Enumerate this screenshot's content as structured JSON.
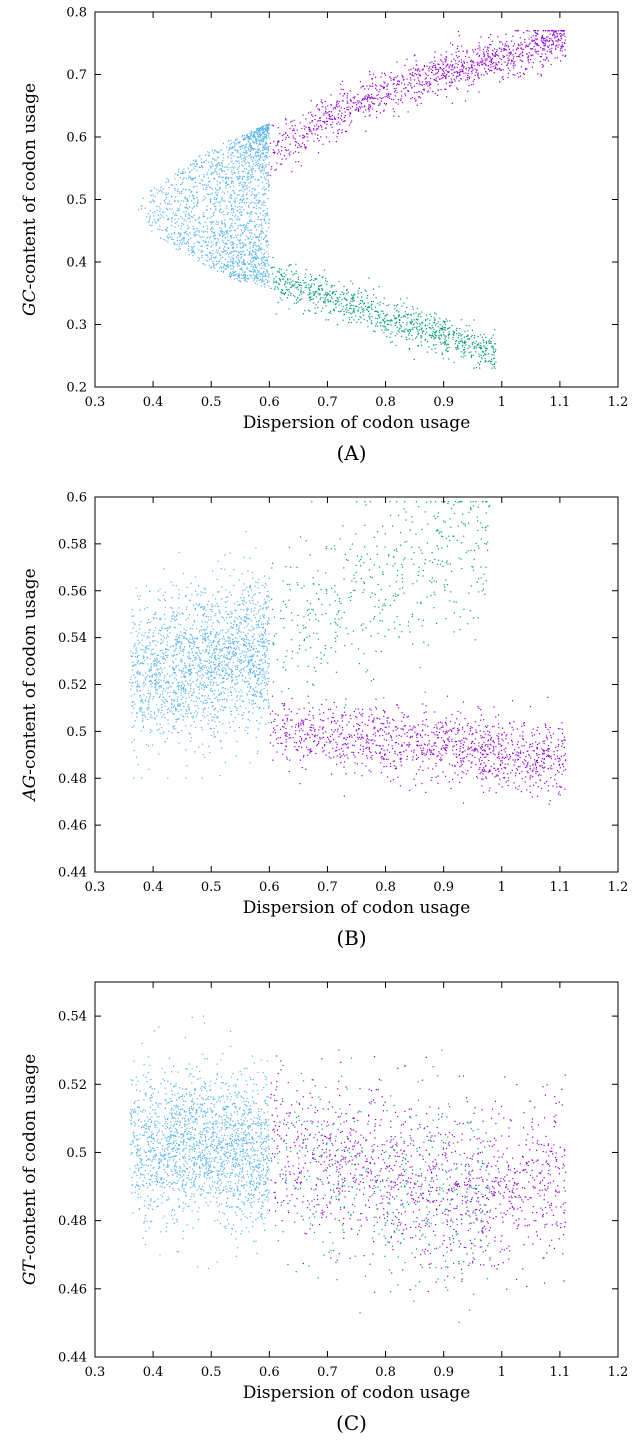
{
  "chart_data": [
    {
      "type": "scatter",
      "panel_label": "(A)",
      "xlabel": "Dispersion of codon usage",
      "ylabel_italic": "GC",
      "ylabel_rest": "-content of codon usage",
      "xlim": [
        0.3,
        1.2
      ],
      "ylim": [
        0.2,
        0.8
      ],
      "xticks": [
        0.3,
        0.4,
        0.5,
        0.6,
        0.7,
        0.8,
        0.9,
        1,
        1.1,
        1.2
      ],
      "yticks": [
        0.2,
        0.3,
        0.4,
        0.5,
        0.6,
        0.7,
        0.8
      ],
      "grid": false,
      "legend": "none",
      "series": [
        {
          "color": "#56b4e9",
          "points_approx": 3500,
          "x_range": [
            0.36,
            0.6
          ],
          "y_range": [
            0.36,
            0.62
          ],
          "trend": [
            [
              0.36,
              0.49
            ],
            [
              0.45,
              0.47
            ],
            [
              0.52,
              0.45
            ],
            [
              0.6,
              0.45
            ]
          ]
        },
        {
          "color": "#9400d3",
          "points_approx": 2300,
          "x_range": [
            0.6,
            1.11
          ],
          "y_range": [
            0.51,
            0.77
          ],
          "trend": [
            [
              0.6,
              0.575
            ],
            [
              0.7,
              0.63
            ],
            [
              0.8,
              0.675
            ],
            [
              0.9,
              0.705
            ],
            [
              1.0,
              0.725
            ],
            [
              1.1,
              0.76
            ]
          ]
        },
        {
          "color": "#009e73",
          "points_approx": 1700,
          "x_range": [
            0.6,
            0.99
          ],
          "y_range": [
            0.23,
            0.42
          ],
          "trend": [
            [
              0.6,
              0.375
            ],
            [
              0.7,
              0.345
            ],
            [
              0.8,
              0.31
            ],
            [
              0.9,
              0.285
            ],
            [
              0.98,
              0.255
            ]
          ]
        }
      ]
    },
    {
      "type": "scatter",
      "panel_label": "(B)",
      "xlabel": "Dispersion of codon usage",
      "ylabel_italic": "AG",
      "ylabel_rest": "-content of codon usage",
      "xlim": [
        0.3,
        1.2
      ],
      "ylim": [
        0.44,
        0.6
      ],
      "xticks": [
        0.3,
        0.4,
        0.5,
        0.6,
        0.7,
        0.8,
        0.9,
        1,
        1.1,
        1.2
      ],
      "yticks": [
        0.44,
        0.46,
        0.48,
        0.5,
        0.52,
        0.54,
        0.56,
        0.58,
        0.6
      ],
      "grid": false,
      "legend": "none",
      "series": [
        {
          "color": "#56b4e9",
          "points_approx": 3500,
          "x_range": [
            0.36,
            0.6
          ],
          "y_range": [
            0.48,
            0.59
          ],
          "trend": [
            [
              0.4,
              0.525
            ],
            [
              0.5,
              0.53
            ],
            [
              0.6,
              0.535
            ]
          ]
        },
        {
          "color": "#009e73",
          "points_approx": 900,
          "x_range": [
            0.6,
            0.98
          ],
          "y_range": [
            0.5,
            0.598
          ],
          "trend": [
            [
              0.6,
              0.54
            ],
            [
              0.7,
              0.55
            ],
            [
              0.8,
              0.565
            ],
            [
              0.9,
              0.575
            ],
            [
              0.97,
              0.575
            ]
          ]
        },
        {
          "color": "#9400d3",
          "points_approx": 2300,
          "x_range": [
            0.6,
            1.11
          ],
          "y_range": [
            0.46,
            0.515
          ],
          "trend": [
            [
              0.6,
              0.5
            ],
            [
              0.8,
              0.497
            ],
            [
              0.95,
              0.492
            ],
            [
              1.1,
              0.488
            ]
          ]
        }
      ]
    },
    {
      "type": "scatter",
      "panel_label": "(C)",
      "xlabel": "Dispersion of codon usage",
      "ylabel_italic": "GT",
      "ylabel_rest": "-content of codon usage",
      "xlim": [
        0.3,
        1.2
      ],
      "ylim": [
        0.44,
        0.55
      ],
      "xticks": [
        0.3,
        0.4,
        0.5,
        0.6,
        0.7,
        0.8,
        0.9,
        1,
        1.1,
        1.2
      ],
      "yticks": [
        0.44,
        0.46,
        0.48,
        0.5,
        0.52,
        0.54
      ],
      "grid": false,
      "legend": "none",
      "series": [
        {
          "color": "#56b4e9",
          "points_approx": 3500,
          "x_range": [
            0.36,
            0.6
          ],
          "y_range": [
            0.46,
            0.54
          ],
          "trend": [
            [
              0.4,
              0.502
            ],
            [
              0.5,
              0.502
            ],
            [
              0.6,
              0.5
            ]
          ]
        },
        {
          "color": "#9400d3",
          "points_approx": 2300,
          "x_range": [
            0.6,
            1.11
          ],
          "y_range": [
            0.45,
            0.545
          ],
          "trend": [
            [
              0.6,
              0.5
            ],
            [
              0.8,
              0.495
            ],
            [
              0.95,
              0.488
            ],
            [
              1.1,
              0.492
            ]
          ]
        },
        {
          "color": "#009e73",
          "points_approx": 900,
          "x_range": [
            0.6,
            0.98
          ],
          "y_range": [
            0.447,
            0.53
          ],
          "trend": [
            [
              0.6,
              0.5
            ],
            [
              0.8,
              0.49
            ],
            [
              0.95,
              0.485
            ]
          ]
        }
      ]
    }
  ]
}
